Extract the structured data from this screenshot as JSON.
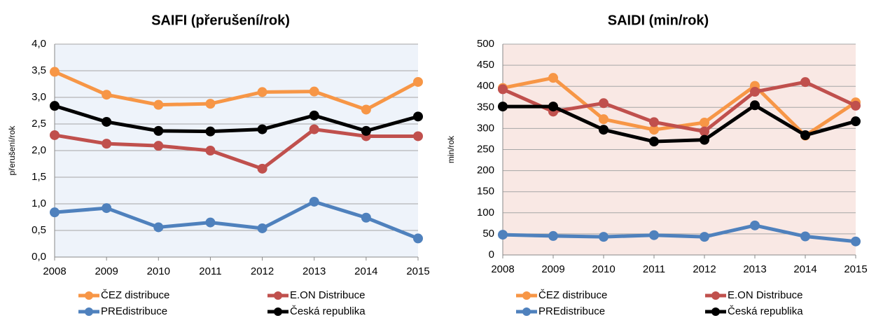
{
  "chart_data": [
    {
      "type": "line",
      "title": "SAIFI (přerušení/rok)",
      "y_label": "přerušení/rok",
      "x": [
        2008,
        2009,
        2010,
        2011,
        2012,
        2013,
        2014,
        2015
      ],
      "xlim": [
        2008,
        2015
      ],
      "xticks": [
        2008,
        2009,
        2010,
        2011,
        2012,
        2013,
        2014,
        2015
      ],
      "ylim": [
        0,
        4
      ],
      "yticks": [
        {
          "value": 0,
          "label": "0,0"
        },
        {
          "value": 0.5,
          "label": "0,5"
        },
        {
          "value": 1,
          "label": "1,0"
        },
        {
          "value": 1.5,
          "label": "1,5"
        },
        {
          "value": 2,
          "label": "2,0"
        },
        {
          "value": 2.5,
          "label": "2,5"
        },
        {
          "value": 3,
          "label": "3,0"
        },
        {
          "value": 3.5,
          "label": "3,5"
        },
        {
          "value": 4,
          "label": "4,0"
        }
      ],
      "grid": true,
      "background": "#eef3fa",
      "series": [
        {
          "name": "ČEZ distribuce",
          "color": "#f79646",
          "values": [
            3.48,
            3.05,
            2.86,
            2.88,
            3.1,
            3.11,
            2.77,
            3.29
          ]
        },
        {
          "name": "E.ON Distribuce",
          "color": "#c0504d",
          "values": [
            2.29,
            2.13,
            2.09,
            2.0,
            1.66,
            2.4,
            2.27,
            2.27
          ]
        },
        {
          "name": "PREdistribuce",
          "color": "#4f81bd",
          "values": [
            0.84,
            0.92,
            0.56,
            0.65,
            0.54,
            1.04,
            0.74,
            0.35
          ]
        },
        {
          "name": "Česká republika",
          "color": "#000000",
          "values": [
            2.84,
            2.54,
            2.37,
            2.36,
            2.4,
            2.66,
            2.37,
            2.64
          ]
        }
      ]
    },
    {
      "type": "line",
      "title": "SAIDI (min/rok)",
      "y_label": "min/rok",
      "x": [
        2008,
        2009,
        2010,
        2011,
        2012,
        2013,
        2014,
        2015
      ],
      "xlim": [
        2008,
        2015
      ],
      "xticks": [
        2008,
        2009,
        2010,
        2011,
        2012,
        2013,
        2014,
        2015
      ],
      "ylim": [
        0,
        500
      ],
      "yticks": [
        0,
        50,
        100,
        150,
        200,
        250,
        300,
        350,
        400,
        450,
        500
      ],
      "grid": true,
      "background": "#f9e8e4",
      "series": [
        {
          "name": "ČEZ distribuce",
          "color": "#f79646",
          "values": [
            396,
            420,
            322,
            297,
            314,
            401,
            283,
            362
          ]
        },
        {
          "name": "E.ON Distribuce",
          "color": "#c0504d",
          "values": [
            393,
            340,
            360,
            315,
            293,
            387,
            410,
            354
          ]
        },
        {
          "name": "PREdistribuce",
          "color": "#4f81bd",
          "values": [
            48,
            45,
            43,
            47,
            43,
            70,
            44,
            32
          ]
        },
        {
          "name": "Česká republika",
          "color": "#000000",
          "values": [
            352,
            352,
            297,
            269,
            273,
            355,
            284,
            317
          ]
        }
      ]
    }
  ]
}
